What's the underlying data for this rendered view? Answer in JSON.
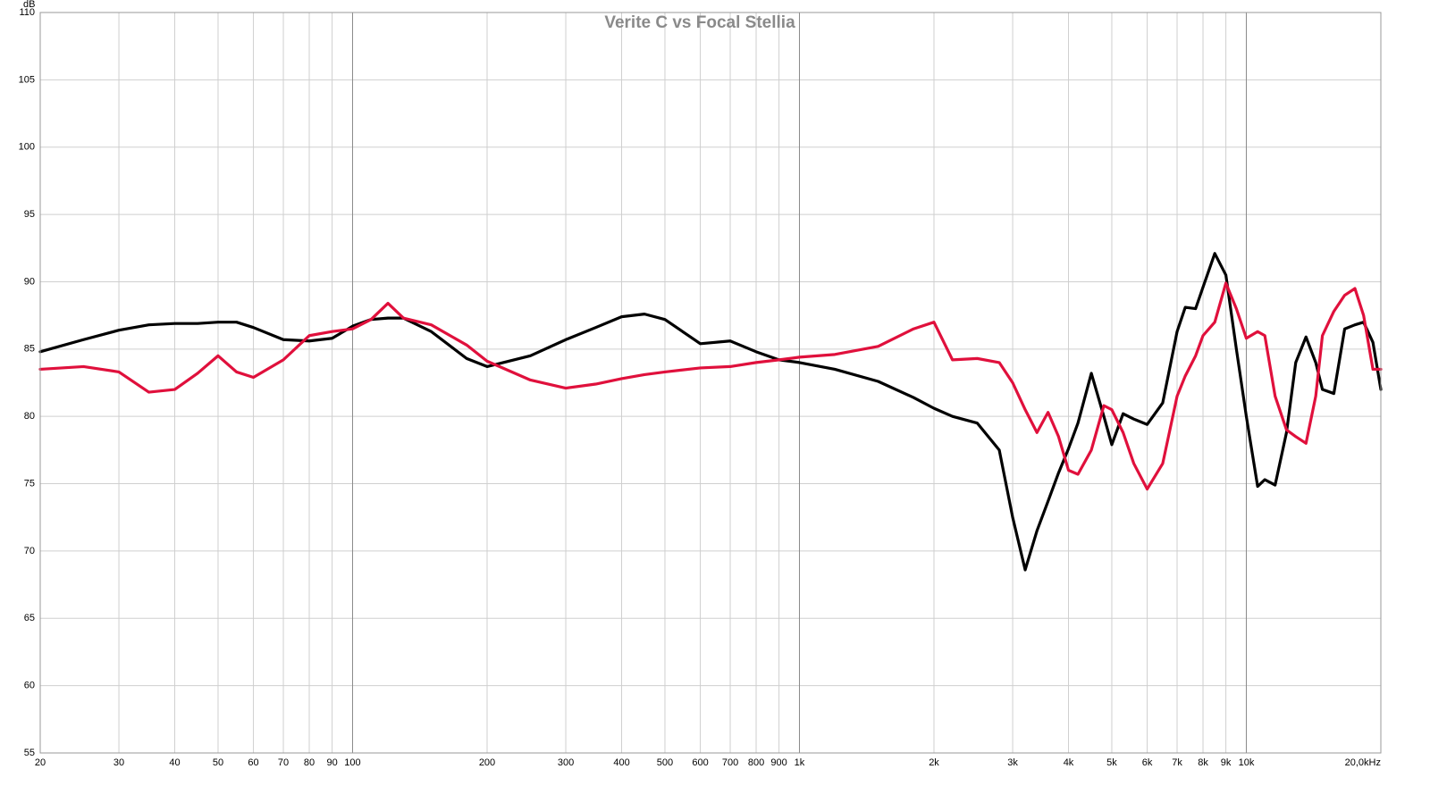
{
  "chart_data": {
    "type": "line",
    "title": "Verite C vs Focal Stellia",
    "y_label": "dB",
    "xscale": "log",
    "grid": true,
    "x": [
      20,
      25,
      30,
      35,
      40,
      45,
      50,
      55,
      60,
      70,
      80,
      90,
      100,
      110,
      120,
      130,
      150,
      180,
      200,
      250,
      300,
      350,
      400,
      450,
      500,
      600,
      700,
      800,
      900,
      1000,
      1200,
      1500,
      1800,
      2000,
      2200,
      2500,
      2800,
      3000,
      3200,
      3400,
      3600,
      3800,
      4000,
      4200,
      4500,
      4800,
      5000,
      5300,
      5600,
      6000,
      6500,
      7000,
      7300,
      7700,
      8000,
      8500,
      9000,
      9500,
      10000,
      10600,
      11000,
      11600,
      12300,
      12900,
      13600,
      14300,
      14800,
      15700,
      16600,
      17500,
      18300,
      19200,
      20000
    ],
    "series": [
      {
        "color": "#000000",
        "values": [
          84.8,
          85.7,
          86.4,
          86.8,
          86.9,
          86.9,
          87.0,
          87.0,
          86.6,
          85.7,
          85.6,
          85.8,
          86.7,
          87.2,
          87.3,
          87.3,
          86.3,
          84.3,
          83.7,
          84.5,
          85.7,
          86.6,
          87.4,
          87.6,
          87.2,
          85.4,
          85.6,
          84.8,
          84.2,
          84.0,
          83.5,
          82.6,
          81.4,
          80.6,
          80.0,
          79.5,
          77.5,
          72.5,
          68.6,
          71.5,
          73.7,
          75.8,
          77.6,
          79.5,
          83.2,
          80.0,
          77.9,
          80.2,
          79.8,
          79.4,
          81.0,
          86.3,
          88.1,
          88.0,
          89.6,
          92.1,
          90.5,
          85.0,
          80.0,
          74.8,
          75.3,
          74.9,
          78.8,
          84.0,
          85.9,
          84.0,
          82.0,
          81.7,
          86.5,
          86.8,
          87.0,
          85.5,
          82.0
        ]
      },
      {
        "color": "#e0103c",
        "values": [
          83.5,
          83.7,
          83.3,
          81.8,
          82.0,
          83.2,
          84.5,
          83.3,
          82.9,
          84.2,
          86.0,
          86.3,
          86.5,
          87.2,
          88.4,
          87.3,
          86.8,
          85.3,
          84.1,
          82.7,
          82.1,
          82.4,
          82.8,
          83.1,
          83.3,
          83.6,
          83.7,
          84.0,
          84.2,
          84.4,
          84.6,
          85.2,
          86.5,
          87.0,
          84.2,
          84.3,
          84.0,
          82.5,
          80.5,
          78.8,
          80.3,
          78.5,
          76.0,
          75.7,
          77.5,
          80.8,
          80.5,
          78.8,
          76.5,
          74.6,
          76.5,
          81.5,
          83.0,
          84.5,
          86.0,
          87.0,
          89.9,
          88.0,
          85.8,
          86.3,
          86.0,
          81.5,
          79.0,
          78.5,
          78.0,
          81.5,
          86.0,
          87.8,
          89.0,
          89.5,
          87.5,
          83.5,
          83.5
        ]
      }
    ],
    "xlim": [
      20,
      20000
    ],
    "xticks": [
      20,
      30,
      40,
      50,
      60,
      70,
      80,
      90,
      100,
      200,
      300,
      400,
      500,
      600,
      700,
      800,
      900,
      {
        "value": 1000,
        "label": "1k"
      },
      {
        "value": 2000,
        "label": "2k"
      },
      {
        "value": 3000,
        "label": "3k"
      },
      {
        "value": 4000,
        "label": "4k"
      },
      {
        "value": 5000,
        "label": "5k"
      },
      {
        "value": 6000,
        "label": "6k"
      },
      {
        "value": 7000,
        "label": "7k"
      },
      {
        "value": 8000,
        "label": "8k"
      },
      {
        "value": 9000,
        "label": "9k"
      },
      {
        "value": 10000,
        "label": "10k"
      },
      {
        "value": 20000,
        "label": "20,0kHz"
      }
    ],
    "ylim": [
      55,
      110
    ],
    "yticks": [
      55,
      60,
      65,
      70,
      75,
      80,
      85,
      90,
      95,
      100,
      105,
      110
    ]
  }
}
